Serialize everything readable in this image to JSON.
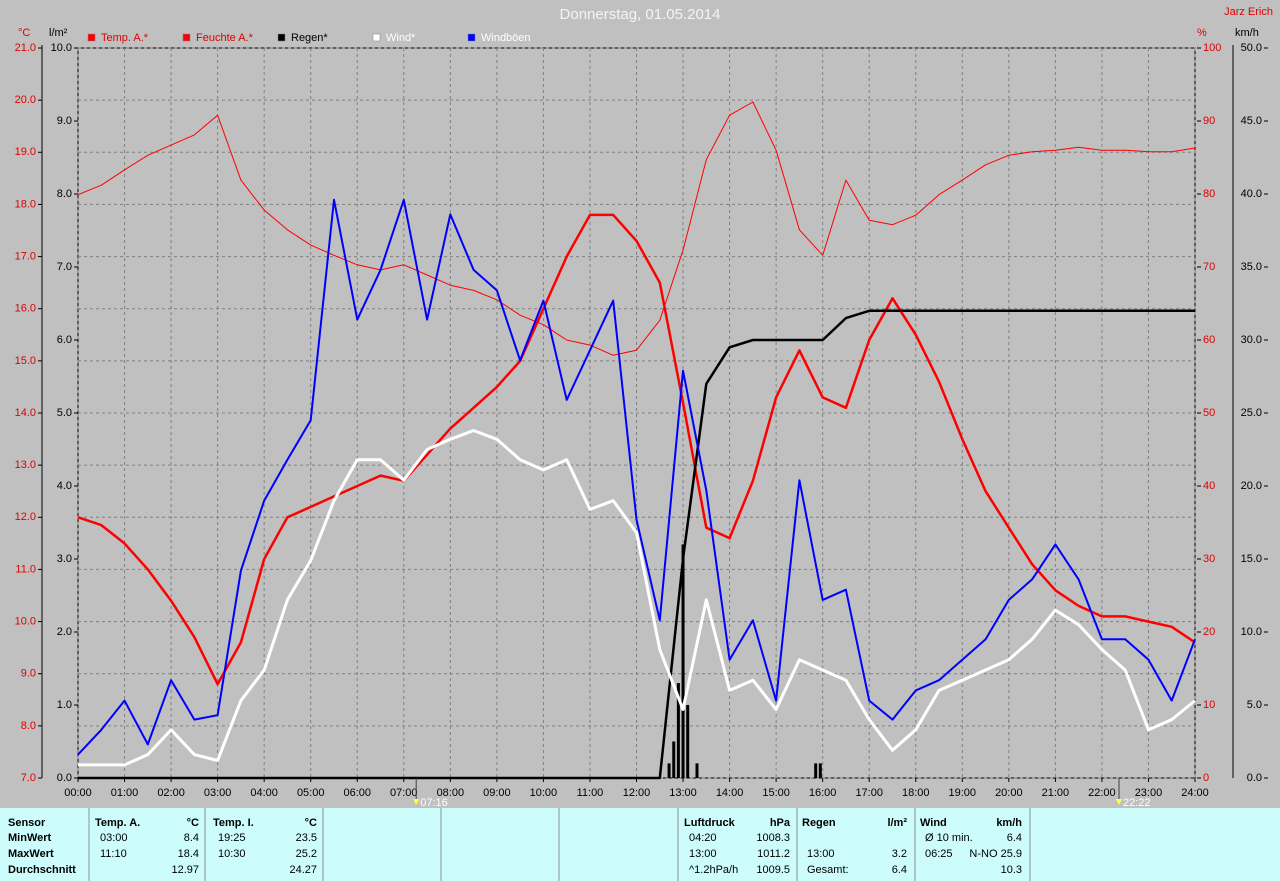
{
  "chart_data": {
    "type": "line",
    "title": "Donnerstag, 01.05.2014",
    "station": "Jarz Erich",
    "y_unit": "°C",
    "y2_unit": "l/m²",
    "y3_unit": "%",
    "y4_unit": "km/h",
    "x": [
      0,
      0.5,
      1,
      1.5,
      2,
      2.5,
      3,
      3.5,
      4,
      4.5,
      5,
      5.5,
      6,
      6.5,
      7,
      7.5,
      8,
      8.5,
      9,
      9.5,
      10,
      10.5,
      11,
      11.5,
      12,
      12.5,
      13,
      13.5,
      14,
      14.5,
      15,
      15.5,
      16,
      16.5,
      17,
      17.5,
      18,
      18.5,
      19,
      19.5,
      20,
      20.5,
      21,
      21.5,
      22,
      22.5,
      23,
      23.5,
      24
    ],
    "xlim": [
      0,
      24
    ],
    "xticks": [
      {
        "value": 0,
        "label": "00:00"
      },
      {
        "value": 1,
        "label": "01:00"
      },
      {
        "value": 2,
        "label": "02:00"
      },
      {
        "value": 3,
        "label": "03:00"
      },
      {
        "value": 4,
        "label": "04:00"
      },
      {
        "value": 5,
        "label": "05:00"
      },
      {
        "value": 6,
        "label": "06:00"
      },
      {
        "value": 7,
        "label": "07:00"
      },
      {
        "value": 8,
        "label": "08:00"
      },
      {
        "value": 9,
        "label": "09:00"
      },
      {
        "value": 10,
        "label": "10:00"
      },
      {
        "value": 11,
        "label": "11:00"
      },
      {
        "value": 12,
        "label": "12:00"
      },
      {
        "value": 13,
        "label": "13:00"
      },
      {
        "value": 14,
        "label": "14:00"
      },
      {
        "value": 15,
        "label": "15:00"
      },
      {
        "value": 16,
        "label": "16:00"
      },
      {
        "value": 17,
        "label": "17:00"
      },
      {
        "value": 18,
        "label": "18:00"
      },
      {
        "value": 19,
        "label": "19:00"
      },
      {
        "value": 20,
        "label": "20:00"
      },
      {
        "value": 21,
        "label": "21:00"
      },
      {
        "value": 22,
        "label": "22:00"
      },
      {
        "value": 23,
        "label": "23:00"
      },
      {
        "value": 24,
        "label": "24:00"
      }
    ],
    "ylim": [
      7,
      21
    ],
    "yticks": [
      {
        "value": 7,
        "label": "7.0"
      },
      {
        "value": 8,
        "label": "8.0"
      },
      {
        "value": 9,
        "label": "9.0"
      },
      {
        "value": 10,
        "label": "10.0"
      },
      {
        "value": 11,
        "label": "11.0"
      },
      {
        "value": 12,
        "label": "12.0"
      },
      {
        "value": 13,
        "label": "13.0"
      },
      {
        "value": 14,
        "label": "14.0"
      },
      {
        "value": 15,
        "label": "15.0"
      },
      {
        "value": 16,
        "label": "16.0"
      },
      {
        "value": 17,
        "label": "17.0"
      },
      {
        "value": 18,
        "label": "18.0"
      },
      {
        "value": 19,
        "label": "19.0"
      },
      {
        "value": 20,
        "label": "20.0"
      },
      {
        "value": 21,
        "label": "21.0"
      }
    ],
    "y2lim": [
      0,
      10
    ],
    "y2ticks": [
      {
        "value": 0,
        "label": "0.0"
      },
      {
        "value": 1,
        "label": "1.0"
      },
      {
        "value": 2,
        "label": "2.0"
      },
      {
        "value": 3,
        "label": "3.0"
      },
      {
        "value": 4,
        "label": "4.0"
      },
      {
        "value": 5,
        "label": "5.0"
      },
      {
        "value": 6,
        "label": "6.0"
      },
      {
        "value": 7,
        "label": "7.0"
      },
      {
        "value": 8,
        "label": "8.0"
      },
      {
        "value": 9,
        "label": "9.0"
      },
      {
        "value": 10,
        "label": "10.0"
      }
    ],
    "y3lim": [
      0,
      100
    ],
    "y3ticks": [
      0,
      10,
      20,
      30,
      40,
      50,
      60,
      70,
      80,
      90,
      100
    ],
    "y4lim": [
      0,
      50
    ],
    "y4ticks": [
      {
        "value": 0,
        "label": "0.0"
      },
      {
        "value": 5,
        "label": "5.0"
      },
      {
        "value": 10,
        "label": "10.0"
      },
      {
        "value": 15,
        "label": "15.0"
      },
      {
        "value": 20,
        "label": "20.0"
      },
      {
        "value": 25,
        "label": "25.0"
      },
      {
        "value": 30,
        "label": "30.0"
      },
      {
        "value": 35,
        "label": "35.0"
      },
      {
        "value": 40,
        "label": "40.0"
      },
      {
        "value": 45,
        "label": "45.0"
      },
      {
        "value": 50,
        "label": "50.0"
      }
    ],
    "grid": true,
    "series": [
      {
        "name": "Temp. A.*",
        "color": "#ff0000",
        "axis": "y",
        "values": [
          12.0,
          11.85,
          11.5,
          11.0,
          10.4,
          9.7,
          8.8,
          9.6,
          11.2,
          12.0,
          12.2,
          12.4,
          12.6,
          12.8,
          12.7,
          13.2,
          13.7,
          14.1,
          14.5,
          15.0,
          16.0,
          17.0,
          17.8,
          17.8,
          17.3,
          16.5,
          14.2,
          11.8,
          11.6,
          12.7,
          14.3,
          15.2,
          14.3,
          14.1,
          15.4,
          16.2,
          15.5,
          14.6,
          13.5,
          12.5,
          11.8,
          11.1,
          10.6,
          10.3,
          10.1,
          10.1,
          10.0,
          9.9,
          9.6
        ]
      },
      {
        "name": "Feuchte A.*",
        "color": "#ff0000",
        "axis": "y3",
        "values": [
          79.9,
          81.2,
          83.3,
          85.3,
          86.7,
          88.1,
          90.8,
          81.9,
          77.8,
          75.1,
          73.0,
          71.6,
          70.3,
          69.6,
          70.3,
          68.9,
          67.5,
          66.8,
          65.5,
          63.4,
          62.1,
          60.0,
          59.3,
          57.9,
          58.6,
          62.7,
          72.3,
          84.7,
          90.8,
          92.6,
          86.0,
          75.1,
          71.6,
          81.9,
          76.4,
          75.8,
          77.1,
          79.9,
          81.9,
          84.0,
          85.3,
          85.8,
          86.0,
          86.4,
          86.0,
          86.0,
          85.8,
          85.8,
          86.3
        ]
      },
      {
        "name": "Regen*",
        "color": "#000000",
        "axis": "y2",
        "values": [
          0,
          0,
          0,
          0,
          0,
          0,
          0,
          0,
          0,
          0,
          0,
          0,
          0,
          0,
          0,
          0,
          0,
          0,
          0,
          0,
          0,
          0,
          0,
          0,
          0,
          0,
          3.0,
          5.4,
          5.9,
          6.0,
          6.0,
          6.0,
          6.0,
          6.3,
          6.4,
          6.4,
          6.4,
          6.4,
          6.4,
          6.4,
          6.4,
          6.4,
          6.4,
          6.4,
          6.4,
          6.4,
          6.4,
          6.4,
          6.4
        ]
      },
      {
        "name": "Wind*",
        "color": "#ffffff",
        "axis": "y4",
        "values": [
          0.9,
          0.9,
          0.9,
          1.6,
          3.3,
          1.6,
          1.2,
          5.3,
          7.4,
          12.2,
          14.9,
          19.0,
          21.8,
          21.8,
          20.4,
          22.5,
          23.2,
          23.8,
          23.2,
          21.8,
          21.1,
          21.8,
          18.4,
          19.0,
          16.8,
          8.8,
          4.7,
          12.2,
          6.0,
          6.7,
          4.7,
          8.1,
          7.4,
          6.7,
          4.0,
          1.9,
          3.3,
          6.0,
          6.7,
          7.4,
          8.1,
          9.5,
          11.5,
          10.5,
          8.8,
          7.4,
          3.3,
          4.0,
          5.3
        ]
      },
      {
        "name": "Windböen",
        "color": "#0000ff",
        "axis": "y4",
        "values": [
          1.6,
          3.3,
          5.3,
          2.3,
          6.7,
          4.0,
          4.3,
          14.2,
          19.0,
          21.8,
          24.5,
          39.6,
          31.4,
          34.8,
          39.6,
          31.4,
          38.6,
          34.8,
          33.4,
          28.6,
          32.7,
          25.9,
          29.3,
          32.7,
          17.7,
          10.8,
          27.9,
          19.7,
          8.1,
          10.8,
          5.3,
          20.4,
          12.2,
          12.9,
          5.3,
          4.0,
          6.0,
          6.7,
          8.1,
          9.5,
          12.2,
          13.6,
          16.0,
          13.6,
          9.5,
          9.5,
          8.1,
          5.3,
          9.5
        ]
      }
    ],
    "rain_bars": {
      "color": "#000000",
      "axis": "y2",
      "x": [
        12.7,
        12.8,
        12.9,
        13.0,
        13.1,
        13.3,
        15.85,
        15.95
      ],
      "values": [
        0.2,
        0.5,
        1.3,
        3.2,
        1.0,
        0.2,
        0.2,
        0.2
      ]
    },
    "annotations": [
      {
        "x": 7.2667,
        "label": "07:16"
      },
      {
        "x": 22.3667,
        "label": "22:22"
      }
    ]
  },
  "table": {
    "sensor": {
      "header": "Sensor",
      "rows": [
        "MinWert",
        "MaxWert",
        "Durchschnitt"
      ]
    },
    "blocks": [
      {
        "title": "Temp. A.",
        "unit": "°C",
        "rows": [
          [
            "03:00",
            "8.4"
          ],
          [
            "11:10",
            "18.4"
          ],
          [
            null,
            "12.97"
          ]
        ]
      },
      {
        "title": "Temp. I.",
        "unit": "°C",
        "rows": [
          [
            "19:25",
            "23.5"
          ],
          [
            "10:30",
            "25.2"
          ],
          [
            null,
            "24.27"
          ]
        ]
      },
      {
        "title": "Luftdruck",
        "unit": "hPa",
        "rows": [
          [
            "04:20",
            "1008.3"
          ],
          [
            "13:00",
            "1011.2"
          ],
          [
            "^1.2hPa/h",
            "1009.5"
          ]
        ]
      },
      {
        "title": "Regen",
        "unit": "l/m²",
        "rows": [
          [
            null,
            null
          ],
          [
            "13:00",
            "3.2"
          ],
          [
            "Gesamt:",
            "6.4"
          ]
        ]
      },
      {
        "title": "Wind",
        "unit": "km/h",
        "rows": [
          [
            "Ø 10 min.",
            "6.4"
          ],
          [
            "06:25",
            "N-NO 25.9"
          ],
          [
            null,
            "10.3"
          ]
        ]
      }
    ]
  }
}
